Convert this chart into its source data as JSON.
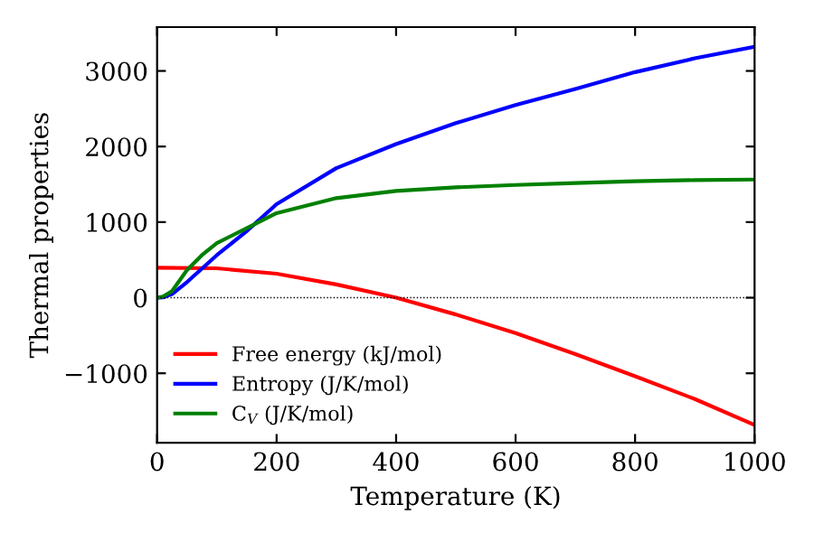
{
  "chart_data": {
    "type": "line",
    "xlabel": "Temperature (K)",
    "ylabel": "Thermal properties",
    "xlim": [
      0,
      1000
    ],
    "ylim": [
      -1920,
      3580
    ],
    "xticks": [
      0,
      200,
      400,
      600,
      800,
      1000
    ],
    "yticks": [
      {
        "value": -1000,
        "label": "−1000"
      },
      0,
      1000,
      2000,
      3000
    ],
    "grid": false,
    "legend": "bottom left",
    "marker": "none",
    "line_style": "solid",
    "ref_lines": [
      {
        "axis": "y",
        "value": 0,
        "label": null,
        "color": "#000000",
        "line_style": "dotted"
      }
    ],
    "series": [
      {
        "name": "Free energy (kJ/mol)",
        "color": "#ff0000",
        "x": [
          0,
          100,
          200,
          300,
          400,
          500,
          600,
          700,
          800,
          900,
          1000
        ],
        "values": [
          397,
          389,
          317,
          175,
          0,
          -222,
          -468,
          -746,
          -1040,
          -1341,
          -1683
        ]
      },
      {
        "name": "Entropy (J/K/mol)",
        "color": "#0000ff",
        "x": [
          0,
          10,
          25,
          50,
          100,
          150,
          200,
          300,
          400,
          500,
          600,
          700,
          800,
          900,
          1000
        ],
        "values": [
          0,
          5,
          48,
          206,
          563,
          881,
          1238,
          1714,
          2032,
          2310,
          2548,
          2762,
          2984,
          3167,
          3320
        ]
      },
      {
        "name": "C$_{V}$ (J/K/mol)",
        "color": "#008000",
        "x": [
          0,
          10,
          25,
          50,
          75,
          100,
          150,
          200,
          300,
          400,
          500,
          600,
          700,
          800,
          900,
          1000
        ],
        "values": [
          0,
          15,
          87,
          365,
          563,
          722,
          920,
          1119,
          1317,
          1413,
          1460,
          1492,
          1516,
          1540,
          1556,
          1563
        ]
      }
    ]
  }
}
